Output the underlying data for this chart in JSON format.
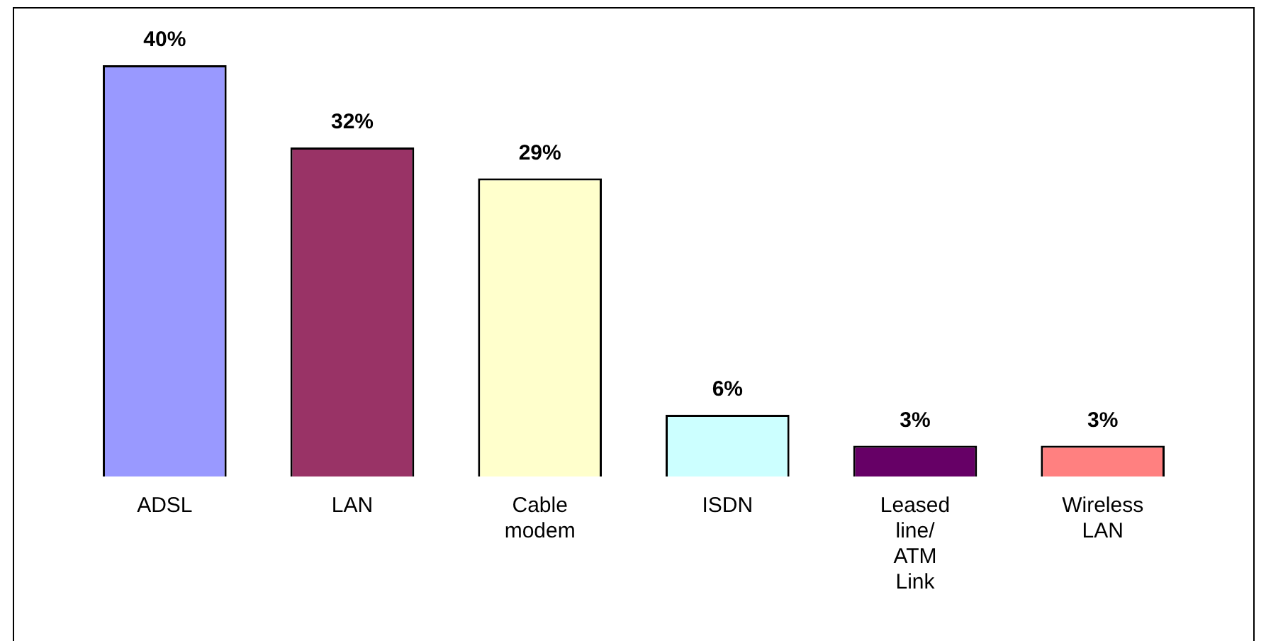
{
  "chart_data": {
    "type": "bar",
    "categories": [
      "ADSL",
      "LAN",
      "Cable modem",
      "ISDN",
      "Leased line/ATM Link",
      "Wireless LAN"
    ],
    "values": [
      40,
      32,
      29,
      6,
      3,
      3
    ],
    "colors": [
      "#9999ff",
      "#993366",
      "#ffffcc",
      "#ccffff",
      "#660066",
      "#ff8080"
    ],
    "value_labels": [
      "40%",
      "32%",
      "29%",
      "6%",
      "3%",
      "3%"
    ],
    "grid": false,
    "legend": false,
    "tick_labels": "x"
  }
}
